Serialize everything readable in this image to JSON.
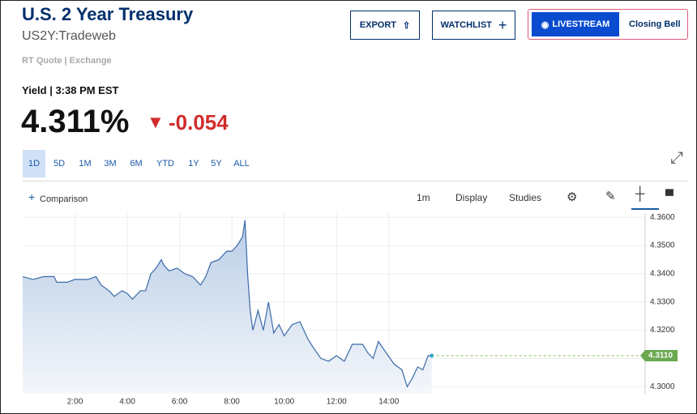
{
  "header": {
    "title": "U.S. 2 Year Treasury",
    "symbol": "US2Y:Tradeweb",
    "quote_source": "RT Quote | Exchange",
    "buttons": {
      "export": "EXPORT",
      "watchlist": "WATCHLIST",
      "livestream": "LIVESTREAM",
      "closing_bell": "Closing Bell"
    }
  },
  "quote": {
    "label": "Yield | 3:38 PM EST",
    "price": "4.311%",
    "change": "-0.054"
  },
  "ranges": [
    "1D",
    "5D",
    "1M",
    "3M",
    "6M",
    "YTD",
    "1Y",
    "5Y",
    "ALL"
  ],
  "toolbar": {
    "comparison": "Comparison",
    "interval": "1m",
    "display": "Display",
    "studies": "Studies"
  },
  "chart_data": {
    "type": "area",
    "x": [
      0.0,
      0.4,
      0.8,
      1.2,
      1.3,
      1.7,
      2.0,
      2.5,
      2.8,
      3.0,
      3.3,
      3.5,
      3.8,
      4.0,
      4.2,
      4.5,
      4.7,
      4.9,
      5.1,
      5.3,
      5.4,
      5.6,
      5.9,
      6.2,
      6.5,
      6.8,
      7.0,
      7.2,
      7.5,
      7.8,
      8.0,
      8.2,
      8.4,
      8.5,
      8.6,
      8.7,
      8.8,
      9.0,
      9.2,
      9.4,
      9.6,
      9.8,
      10.0,
      10.3,
      10.6,
      10.9,
      11.1,
      11.4,
      11.7,
      12.0,
      12.3,
      12.6,
      13.0,
      13.2,
      13.4,
      13.6,
      13.9,
      14.2,
      14.5,
      14.7,
      14.9,
      15.1,
      15.3,
      15.5,
      15.64
    ],
    "series": [
      {
        "color": "#3a6aa8",
        "values": [
          4.339,
          4.338,
          4.339,
          4.339,
          4.337,
          4.337,
          4.338,
          4.338,
          4.339,
          4.336,
          4.334,
          4.332,
          4.334,
          4.333,
          4.331,
          4.334,
          4.334,
          4.34,
          4.342,
          4.345,
          4.343,
          4.341,
          4.342,
          4.34,
          4.339,
          4.336,
          4.339,
          4.344,
          4.345,
          4.348,
          4.348,
          4.35,
          4.353,
          4.359,
          4.34,
          4.327,
          4.32,
          4.327,
          4.32,
          4.33,
          4.319,
          4.322,
          4.318,
          4.322,
          4.323,
          4.317,
          4.314,
          4.31,
          4.309,
          4.311,
          4.309,
          4.315,
          4.315,
          4.312,
          4.31,
          4.316,
          4.312,
          4.308,
          4.306,
          4.3,
          4.303,
          4.307,
          4.306,
          4.311,
          4.311
        ]
      }
    ],
    "xlim": [
      0,
      23.8
    ],
    "xticks": [
      {
        "value": 2,
        "label": "2:00"
      },
      {
        "value": 4,
        "label": "4:00"
      },
      {
        "value": 6,
        "label": "6:00"
      },
      {
        "value": 8,
        "label": "8:00"
      },
      {
        "value": 10,
        "label": "10:00"
      },
      {
        "value": 12,
        "label": "12:00"
      },
      {
        "value": 14,
        "label": "14:00"
      }
    ],
    "ylim": [
      4.2975,
      4.3615
    ],
    "yticks": [
      {
        "value": 4.3,
        "label": "4.3000"
      },
      {
        "value": 4.31,
        "label": "4.3100"
      },
      {
        "value": 4.32,
        "label": "4.3200"
      },
      {
        "value": 4.33,
        "label": "4.3300"
      },
      {
        "value": 4.34,
        "label": "4.3400"
      },
      {
        "value": 4.35,
        "label": "4.3500"
      },
      {
        "value": 4.36,
        "label": "4.3600"
      }
    ],
    "current": {
      "value": 4.311,
      "label": "4.3110"
    },
    "grid": true
  }
}
